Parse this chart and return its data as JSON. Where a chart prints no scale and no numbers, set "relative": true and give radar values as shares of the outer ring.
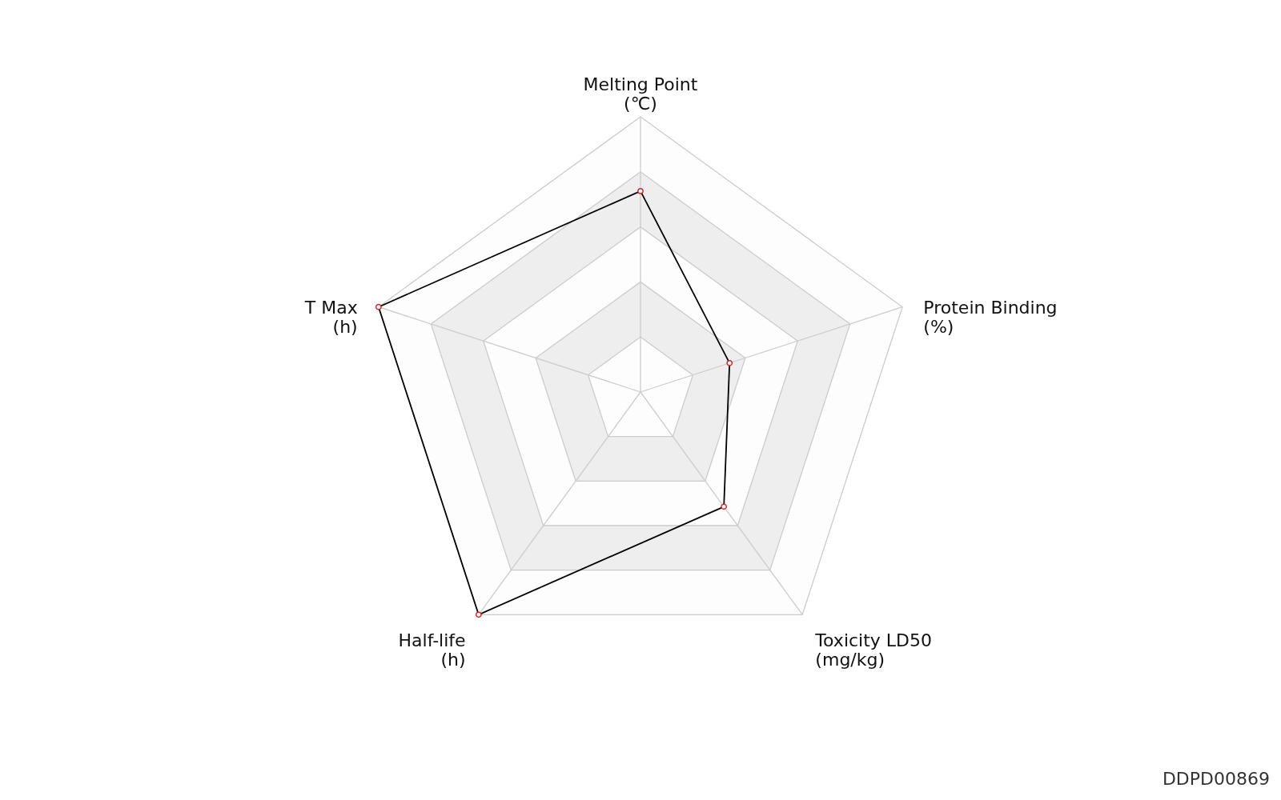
{
  "chart_data": {
    "type": "radar",
    "relative": true,
    "grid": true,
    "marker": "circle",
    "line_style": "solid",
    "categories": [
      "Melting Point\n(℃)",
      "Protein Binding\n(%)",
      "Toxicity LD50\n(mg/kg)",
      "Half-life\n(h)",
      "T Max\n(h)"
    ],
    "series": [
      {
        "color": "#000000",
        "values": [
          0.73,
          0.34,
          0.515,
          1,
          1
        ]
      }
    ],
    "annotations": [
      "DDPD00869"
    ]
  }
}
